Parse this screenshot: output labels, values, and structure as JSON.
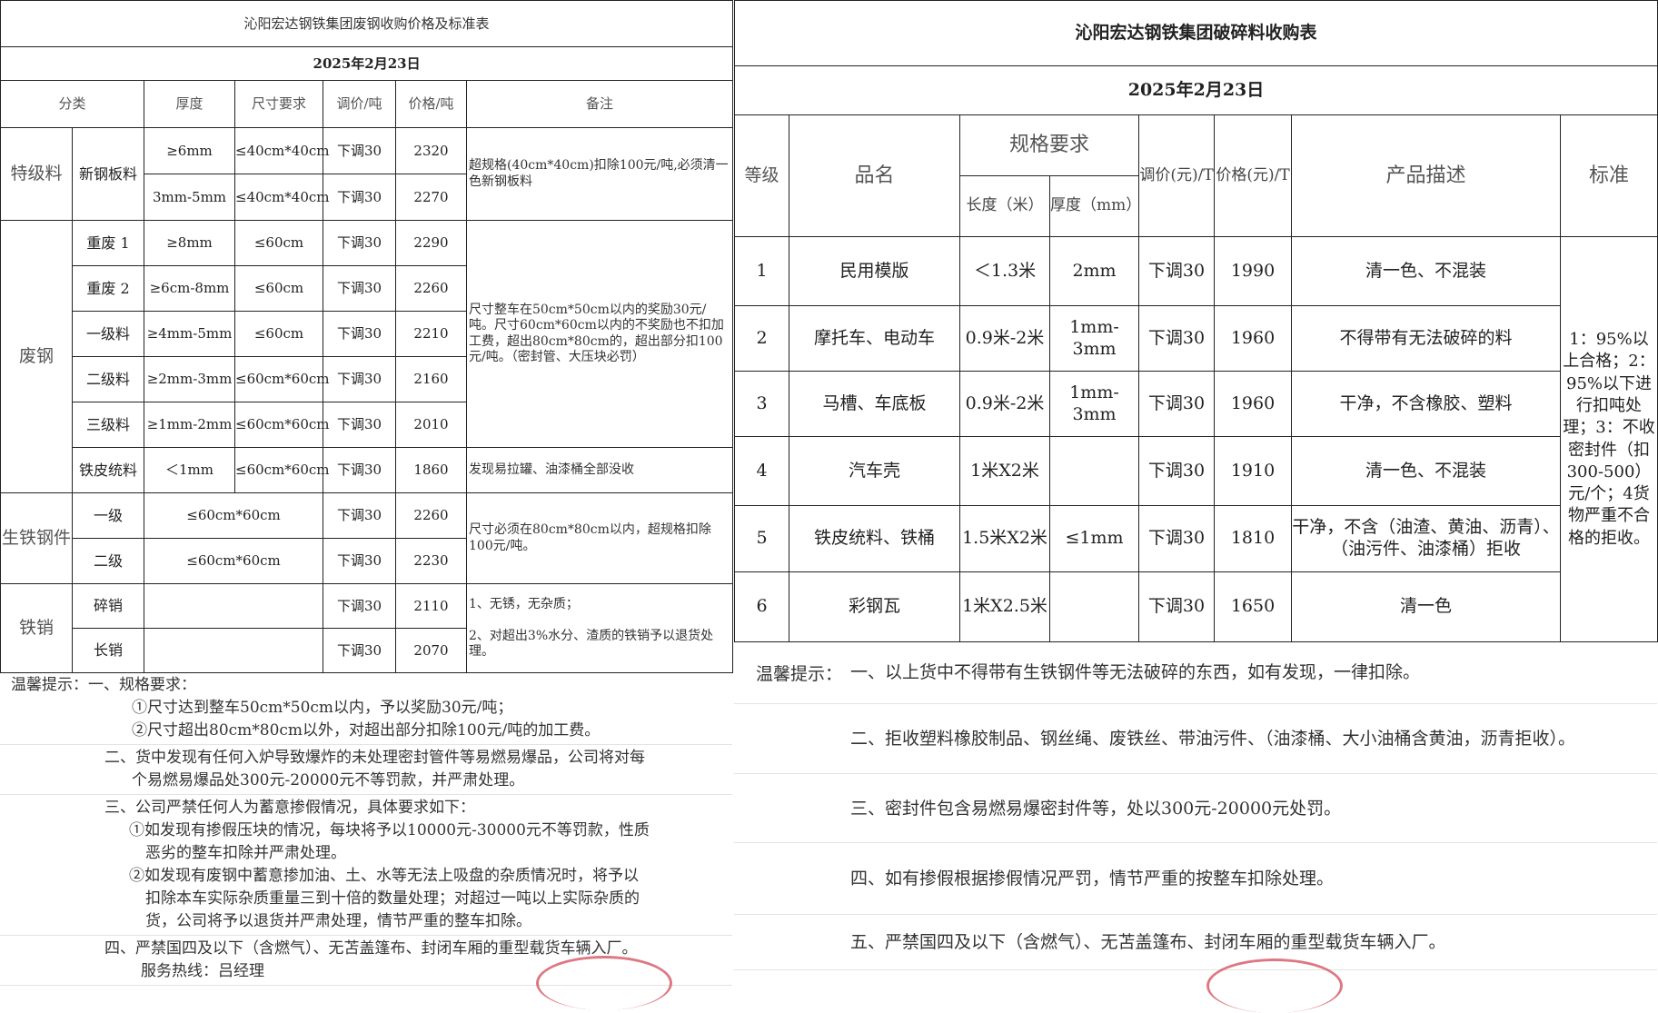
{
  "left": {
    "title": "沁阳宏达钢铁集团废钢收购价格及标准表",
    "date": "2025年2月23日",
    "headers": [
      "分类",
      "厚度",
      "尺寸要求",
      "调价/吨",
      "价格/吨",
      "备注"
    ],
    "groups": [
      {
        "category": "特级料",
        "items": [
          {
            "name": "新钢板料",
            "thickness": "≥6mm",
            "size": "≤40cm*40cm",
            "adjust": "下调30",
            "price": "2320",
            "note": "超规格(40cm*40cm)扣除100元/吨,必须清一色新钢板料"
          },
          {
            "name": "新钢板料",
            "thickness": "3mm-5mm",
            "size": "≤40cm*40cm",
            "adjust": "下调30",
            "price": "2270",
            "note": "超规格(40cm*40cm)扣除100元/吨,必须清一色新钢板料"
          }
        ]
      },
      {
        "category": "废钢",
        "items": [
          {
            "name": "重废 1",
            "thickness": "≥8mm",
            "size": "≤60cm",
            "adjust": "下调30",
            "price": "2290",
            "note": "尺寸整车在50cm*50cm以内的奖励30元/吨。尺寸60cm*60cm以内的不奖励也不扣加工费，超出80cm*80cm的，超出部分扣100元/吨。（密封管、大压块必罚）"
          },
          {
            "name": "重废 2",
            "thickness": "≥6cm-8mm",
            "size": "≤60cm",
            "adjust": "下调30",
            "price": "2260",
            "note": "尺寸整车在50cm*50cm以内的奖励30元/吨。尺寸60cm*60cm以内的不奖励也不扣加工费，超出80cm*80cm的，超出部分扣100元/吨。（密封管、大压块必罚）"
          },
          {
            "name": "一级料",
            "thickness": "≥4mm-5mm",
            "size": "≤60cm",
            "adjust": "下调30",
            "price": "2210",
            "note": "尺寸整车在50cm*50cm以内的奖励30元/吨。尺寸60cm*60cm以内的不奖励也不扣加工费，超出80cm*80cm的，超出部分扣100元/吨。（密封管、大压块必罚）"
          },
          {
            "name": "二级料",
            "thickness": "≥2mm-3mm",
            "size": "≤60cm*60cm",
            "adjust": "下调30",
            "price": "2160",
            "note": "尺寸整车在50cm*50cm以内的奖励30元/吨。尺寸60cm*60cm以内的不奖励也不扣加工费，超出80cm*80cm的，超出部分扣100元/吨。（密封管、大压块必罚）"
          },
          {
            "name": "三级料",
            "thickness": "≥1mm-2mm",
            "size": "≤60cm*60cm",
            "adjust": "下调30",
            "price": "2010",
            "note": "尺寸整车在50cm*50cm以内的奖励30元/吨。尺寸60cm*60cm以内的不奖励也不扣加工费，超出80cm*80cm的，超出部分扣100元/吨。（密封管、大压块必罚）"
          },
          {
            "name": "铁皮统料",
            "thickness": "＜1mm",
            "size": "≤60cm*60cm",
            "adjust": "下调30",
            "price": "1860",
            "note": "发现易拉罐、油漆桶全部没收"
          }
        ]
      },
      {
        "category": "生铁钢件",
        "items": [
          {
            "name": "一级",
            "thickness": null,
            "size": "≤60cm*60cm",
            "adjust": "下调30",
            "price": "2260",
            "note": "尺寸必须在80cm*80cm以内，超规格扣除100元/吨。"
          },
          {
            "name": "二级",
            "thickness": null,
            "size": "≤60cm*60cm",
            "adjust": "下调30",
            "price": "2230",
            "note": "尺寸必须在80cm*80cm以内，超规格扣除100元/吨。"
          }
        ]
      },
      {
        "category": "铁销",
        "items": [
          {
            "name": "碎销",
            "thickness": null,
            "size": "",
            "adjust": "下调30",
            "price": "2110",
            "note": "1、无锈，无杂质；\n\n2、对超出3%水分、渣质的铁销予以退货处理。"
          },
          {
            "name": "长销",
            "thickness": null,
            "size": "",
            "adjust": "下调30",
            "price": "2070",
            "note": "1、无锈，无杂质；\n\n2、对超出3%水分、渣质的铁销予以退货处理。"
          }
        ]
      }
    ],
    "notes": [
      [
        "温馨提示：一、规格要求：",
        "①尺寸达到整车50cm*50cm以内，予以奖励30元/吨；",
        "②尺寸超出80cm*80cm以外，对超出部分扣除100元/吨的加工费。"
      ],
      [
        "二、货中发现有任何入炉导致爆炸的未处理密封管件等易燃易爆品，公司将对每",
        "个易燃易爆品处300元-20000元不等罚款，并严肃处理。"
      ],
      [
        "三、公司严禁任何人为蓄意掺假情况，具体要求如下：",
        "①如发现有掺假压块的情况，每块将予以10000元-30000元不等罚款，性质",
        "恶劣的整车扣除并严肃处理。",
        "②如发现有废钢中蓄意掺加油、土、水等无法上吸盘的杂质情况时，将予以",
        "扣除本车实际杂质重量三到十倍的数量处理；对超过一吨以上实际杂质的",
        "货，公司将予以退货并严肃处理，情节严重的整车扣除。"
      ],
      [
        "四、严禁国四及以下（含燃气）、无苫盖篷布、封闭车厢的重型载货车辆入厂。",
        "服务热线：吕经理"
      ]
    ]
  },
  "right": {
    "title": "沁阳宏达钢铁集团破碎料收购表",
    "date": "2025年2月23日",
    "headers": {
      "grade": "等级",
      "name": "品名",
      "spec": "规格要求",
      "length": "长度（米）",
      "thickness": "厚度（mm）",
      "adjust": "调价(元)/T",
      "price": "价格(元)/T",
      "desc": "产品描述",
      "standard": "标准"
    },
    "rows": [
      {
        "grade": "1",
        "name": "民用模版",
        "length": "＜1.3米",
        "thickness": "2mm",
        "adjust": "下调30",
        "price": "1990",
        "desc": "清一色、不混装"
      },
      {
        "grade": "2",
        "name": "摩托车、电动车",
        "length": "0.9米-2米",
        "thickness": "1mm-3mm",
        "adjust": "下调30",
        "price": "1960",
        "desc": "不得带有无法破碎的料"
      },
      {
        "grade": "3",
        "name": "马槽、车底板",
        "length": "0.9米-2米",
        "thickness": "1mm-3mm",
        "adjust": "下调30",
        "price": "1960",
        "desc": "干净，不含橡胶、塑料"
      },
      {
        "grade": "4",
        "name": "汽车壳",
        "length": "1米X2米",
        "thickness": "",
        "adjust": "下调30",
        "price": "1910",
        "desc": "清一色、不混装"
      },
      {
        "grade": "5",
        "name": "铁皮统料、铁桶",
        "length": "1.5米X2米",
        "thickness": "≤1mm",
        "adjust": "下调30",
        "price": "1810",
        "desc": "干净，不含（油渣、黄油、沥青）、（油污件、油漆桶）拒收"
      },
      {
        "grade": "6",
        "name": "彩钢瓦",
        "length": "1米X2.5米",
        "thickness": "",
        "adjust": "下调30",
        "price": "1650",
        "desc": "清一色"
      }
    ],
    "standard": "1：95%以上合格；2：95%以下进行扣吨处理；3：不收密封件（扣300-500）元/个；4货物严重不合格的拒收。",
    "notes_label": "温馨提示：",
    "notes": [
      "一、以上货中不得带有生铁钢件等无法破碎的东西，如有发现，一律扣除。",
      "二、拒收塑料橡胶制品、钢丝绳、废铁丝、带油污件、（油漆桶、大小油桶含黄油，沥青拒收）。",
      "三、密封件包含易燃易爆密封件等，处以300元-20000元处罚。",
      "四、如有掺假根据掺假情况严罚，情节严重的按整车扣除处理。",
      "五、严禁国四及以下（含燃气）、无苫盖篷布、封闭车厢的重型载货车辆入厂。"
    ]
  },
  "colors": {
    "line": "#222222",
    "stamp": "#d04050"
  }
}
